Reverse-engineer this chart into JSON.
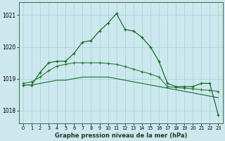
{
  "title": "Graphe pression niveau de la mer (hPa)",
  "bg_color": "#cce8ee",
  "grid_color": "#a8d4da",
  "line_color1": "#1a6b2a",
  "line_color2": "#2d7a35",
  "x_ticks": [
    0,
    1,
    2,
    3,
    4,
    5,
    6,
    7,
    8,
    9,
    10,
    11,
    12,
    13,
    14,
    15,
    16,
    17,
    18,
    19,
    20,
    21,
    22,
    23
  ],
  "ylim": [
    1017.6,
    1021.4
  ],
  "yticks": [
    1018,
    1019,
    1020,
    1021
  ],
  "series1": [
    1018.8,
    1018.8,
    1019.2,
    1019.5,
    1019.55,
    1019.55,
    1019.8,
    1020.15,
    1020.2,
    1020.5,
    1020.75,
    1021.05,
    1020.55,
    1020.5,
    1020.3,
    1020.0,
    1019.55,
    1018.85,
    1018.75,
    1018.75,
    1018.75,
    1018.85,
    1018.85,
    1017.85
  ],
  "series2": [
    1018.8,
    1018.8,
    1018.85,
    1018.9,
    1018.95,
    1018.95,
    1019.0,
    1019.05,
    1019.05,
    1019.05,
    1019.05,
    1019.0,
    1018.95,
    1018.9,
    1018.85,
    1018.8,
    1018.75,
    1018.7,
    1018.65,
    1018.6,
    1018.55,
    1018.5,
    1018.45,
    1018.4
  ],
  "series3": [
    1018.85,
    1018.9,
    1019.05,
    1019.25,
    1019.4,
    1019.45,
    1019.5,
    1019.5,
    1019.5,
    1019.5,
    1019.48,
    1019.45,
    1019.38,
    1019.3,
    1019.22,
    1019.15,
    1019.05,
    1018.75,
    1018.72,
    1018.7,
    1018.68,
    1018.65,
    1018.63,
    1018.6
  ]
}
